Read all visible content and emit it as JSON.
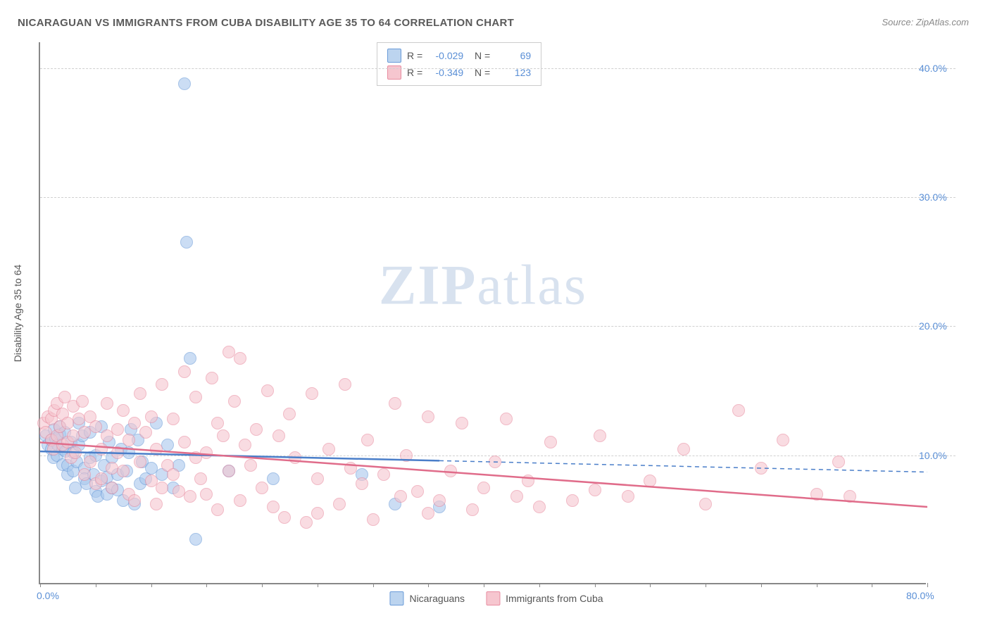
{
  "title": "NICARAGUAN VS IMMIGRANTS FROM CUBA DISABILITY AGE 35 TO 64 CORRELATION CHART",
  "source": "Source: ZipAtlas.com",
  "y_axis_label": "Disability Age 35 to 64",
  "watermark_bold": "ZIP",
  "watermark_light": "atlas",
  "chart": {
    "type": "scatter-with-regression",
    "xlim": [
      0,
      80
    ],
    "ylim": [
      0,
      42
    ],
    "x_ticks": [
      0,
      5,
      10,
      15,
      20,
      25,
      30,
      35,
      40,
      45,
      50,
      55,
      60,
      65,
      70,
      75,
      80
    ],
    "x_labels": [
      {
        "v": 0,
        "t": "0.0%"
      },
      {
        "v": 80,
        "t": "80.0%"
      }
    ],
    "y_grid": [
      {
        "v": 10,
        "t": "10.0%"
      },
      {
        "v": 20,
        "t": "20.0%"
      },
      {
        "v": 30,
        "t": "30.0%"
      },
      {
        "v": 40,
        "t": "40.0%"
      }
    ],
    "background_color": "#ffffff",
    "grid_color": "#d0d0d0",
    "axis_color": "#888888",
    "marker_size": 18,
    "series": [
      {
        "name": "Nicaraguans",
        "color_fill": "#a9c8ed",
        "color_stroke": "#6a9bd8",
        "R": "-0.029",
        "N": "69",
        "regression": {
          "x1": 0,
          "y1": 10.3,
          "x2": 80,
          "y2": 8.7,
          "solid_until_x": 36
        },
        "points": [
          [
            0.5,
            11.5
          ],
          [
            0.7,
            10.8
          ],
          [
            1.0,
            11.2
          ],
          [
            1.0,
            10.5
          ],
          [
            1.2,
            9.8
          ],
          [
            1.3,
            12.0
          ],
          [
            1.4,
            11.3
          ],
          [
            1.5,
            10.0
          ],
          [
            1.6,
            10.8
          ],
          [
            1.8,
            11.6
          ],
          [
            1.8,
            12.2
          ],
          [
            2.0,
            9.3
          ],
          [
            2.0,
            10.5
          ],
          [
            2.2,
            11.8
          ],
          [
            2.3,
            10.3
          ],
          [
            2.5,
            8.5
          ],
          [
            2.5,
            9.2
          ],
          [
            2.8,
            11.0
          ],
          [
            3.0,
            10.2
          ],
          [
            3.0,
            8.8
          ],
          [
            3.2,
            7.5
          ],
          [
            3.3,
            9.5
          ],
          [
            3.5,
            12.5
          ],
          [
            3.5,
            10.8
          ],
          [
            3.8,
            11.5
          ],
          [
            4.0,
            9.0
          ],
          [
            4.0,
            8.2
          ],
          [
            4.2,
            7.8
          ],
          [
            4.5,
            11.8
          ],
          [
            4.5,
            9.8
          ],
          [
            4.8,
            8.5
          ],
          [
            5.0,
            7.2
          ],
          [
            5.0,
            10.0
          ],
          [
            5.2,
            6.8
          ],
          [
            5.5,
            8.0
          ],
          [
            5.5,
            12.2
          ],
          [
            5.8,
            9.2
          ],
          [
            6.0,
            7.0
          ],
          [
            6.0,
            8.3
          ],
          [
            6.2,
            11.0
          ],
          [
            6.5,
            7.5
          ],
          [
            6.5,
            9.8
          ],
          [
            7.0,
            8.5
          ],
          [
            7.0,
            7.3
          ],
          [
            7.3,
            10.5
          ],
          [
            7.5,
            6.5
          ],
          [
            7.8,
            8.8
          ],
          [
            8.0,
            10.2
          ],
          [
            8.2,
            12.0
          ],
          [
            8.5,
            6.2
          ],
          [
            8.8,
            11.2
          ],
          [
            9.0,
            7.8
          ],
          [
            9.2,
            9.5
          ],
          [
            9.5,
            8.2
          ],
          [
            10.0,
            9.0
          ],
          [
            10.5,
            12.5
          ],
          [
            11.0,
            8.5
          ],
          [
            11.5,
            10.8
          ],
          [
            12.0,
            7.5
          ],
          [
            12.5,
            9.2
          ],
          [
            13.0,
            38.8
          ],
          [
            13.2,
            26.5
          ],
          [
            13.5,
            17.5
          ],
          [
            14.0,
            3.5
          ],
          [
            17.0,
            8.8
          ],
          [
            21.0,
            8.2
          ],
          [
            29.0,
            8.5
          ],
          [
            32.0,
            6.2
          ],
          [
            36.0,
            6.0
          ]
        ]
      },
      {
        "name": "Immigants from Cuba",
        "legend_label": "Immigrants from Cuba",
        "color_fill": "#f6c6cf",
        "color_stroke": "#e88ca0",
        "R": "-0.349",
        "N": "123",
        "regression": {
          "x1": 0,
          "y1": 11.0,
          "x2": 80,
          "y2": 6.0,
          "solid_until_x": 80
        },
        "points": [
          [
            0.3,
            12.5
          ],
          [
            0.5,
            11.8
          ],
          [
            0.7,
            13.0
          ],
          [
            1.0,
            11.2
          ],
          [
            1.0,
            12.8
          ],
          [
            1.2,
            10.5
          ],
          [
            1.3,
            13.5
          ],
          [
            1.5,
            11.5
          ],
          [
            1.5,
            14.0
          ],
          [
            1.8,
            12.2
          ],
          [
            2.0,
            10.8
          ],
          [
            2.0,
            13.2
          ],
          [
            2.2,
            14.5
          ],
          [
            2.5,
            11.0
          ],
          [
            2.5,
            12.5
          ],
          [
            2.8,
            9.8
          ],
          [
            3.0,
            13.8
          ],
          [
            3.0,
            11.5
          ],
          [
            3.2,
            10.2
          ],
          [
            3.5,
            12.8
          ],
          [
            3.8,
            14.2
          ],
          [
            4.0,
            8.5
          ],
          [
            4.0,
            11.8
          ],
          [
            4.5,
            9.5
          ],
          [
            4.5,
            13.0
          ],
          [
            5.0,
            7.8
          ],
          [
            5.0,
            12.2
          ],
          [
            5.5,
            10.5
          ],
          [
            5.5,
            8.2
          ],
          [
            6.0,
            11.5
          ],
          [
            6.0,
            14.0
          ],
          [
            6.5,
            9.0
          ],
          [
            6.5,
            7.5
          ],
          [
            7.0,
            12.0
          ],
          [
            7.0,
            10.2
          ],
          [
            7.5,
            8.8
          ],
          [
            7.5,
            13.5
          ],
          [
            8.0,
            11.2
          ],
          [
            8.0,
            7.0
          ],
          [
            8.5,
            12.5
          ],
          [
            8.5,
            6.5
          ],
          [
            9.0,
            9.5
          ],
          [
            9.0,
            14.8
          ],
          [
            9.5,
            11.8
          ],
          [
            10.0,
            8.0
          ],
          [
            10.0,
            13.0
          ],
          [
            10.5,
            6.2
          ],
          [
            10.5,
            10.5
          ],
          [
            11.0,
            7.5
          ],
          [
            11.0,
            15.5
          ],
          [
            11.5,
            9.2
          ],
          [
            12.0,
            8.5
          ],
          [
            12.0,
            12.8
          ],
          [
            12.5,
            7.2
          ],
          [
            13.0,
            16.5
          ],
          [
            13.0,
            11.0
          ],
          [
            13.5,
            6.8
          ],
          [
            14.0,
            9.8
          ],
          [
            14.0,
            14.5
          ],
          [
            14.5,
            8.2
          ],
          [
            15.0,
            10.2
          ],
          [
            15.0,
            7.0
          ],
          [
            15.5,
            16.0
          ],
          [
            16.0,
            12.5
          ],
          [
            16.0,
            5.8
          ],
          [
            16.5,
            11.5
          ],
          [
            17.0,
            8.8
          ],
          [
            17.0,
            18.0
          ],
          [
            17.5,
            14.2
          ],
          [
            18.0,
            6.5
          ],
          [
            18.0,
            17.5
          ],
          [
            18.5,
            10.8
          ],
          [
            19.0,
            9.2
          ],
          [
            19.5,
            12.0
          ],
          [
            20.0,
            7.5
          ],
          [
            20.5,
            15.0
          ],
          [
            21.0,
            6.0
          ],
          [
            21.5,
            11.5
          ],
          [
            22.0,
            5.2
          ],
          [
            22.5,
            13.2
          ],
          [
            23.0,
            9.8
          ],
          [
            24.0,
            4.8
          ],
          [
            24.5,
            14.8
          ],
          [
            25.0,
            8.2
          ],
          [
            25.0,
            5.5
          ],
          [
            26.0,
            10.5
          ],
          [
            27.0,
            6.2
          ],
          [
            27.5,
            15.5
          ],
          [
            28.0,
            9.0
          ],
          [
            29.0,
            7.8
          ],
          [
            29.5,
            11.2
          ],
          [
            30.0,
            5.0
          ],
          [
            31.0,
            8.5
          ],
          [
            32.0,
            14.0
          ],
          [
            32.5,
            6.8
          ],
          [
            33.0,
            10.0
          ],
          [
            34.0,
            7.2
          ],
          [
            35.0,
            5.5
          ],
          [
            35.0,
            13.0
          ],
          [
            36.0,
            6.5
          ],
          [
            37.0,
            8.8
          ],
          [
            38.0,
            12.5
          ],
          [
            39.0,
            5.8
          ],
          [
            40.0,
            7.5
          ],
          [
            41.0,
            9.5
          ],
          [
            42.0,
            12.8
          ],
          [
            43.0,
            6.8
          ],
          [
            44.0,
            8.0
          ],
          [
            45.0,
            6.0
          ],
          [
            46.0,
            11.0
          ],
          [
            48.0,
            6.5
          ],
          [
            50.0,
            7.3
          ],
          [
            50.5,
            11.5
          ],
          [
            53.0,
            6.8
          ],
          [
            55.0,
            8.0
          ],
          [
            58.0,
            10.5
          ],
          [
            60.0,
            6.2
          ],
          [
            63.0,
            13.5
          ],
          [
            65.0,
            9.0
          ],
          [
            67.0,
            11.2
          ],
          [
            70.0,
            7.0
          ],
          [
            72.0,
            9.5
          ],
          [
            73.0,
            6.8
          ]
        ]
      }
    ]
  }
}
